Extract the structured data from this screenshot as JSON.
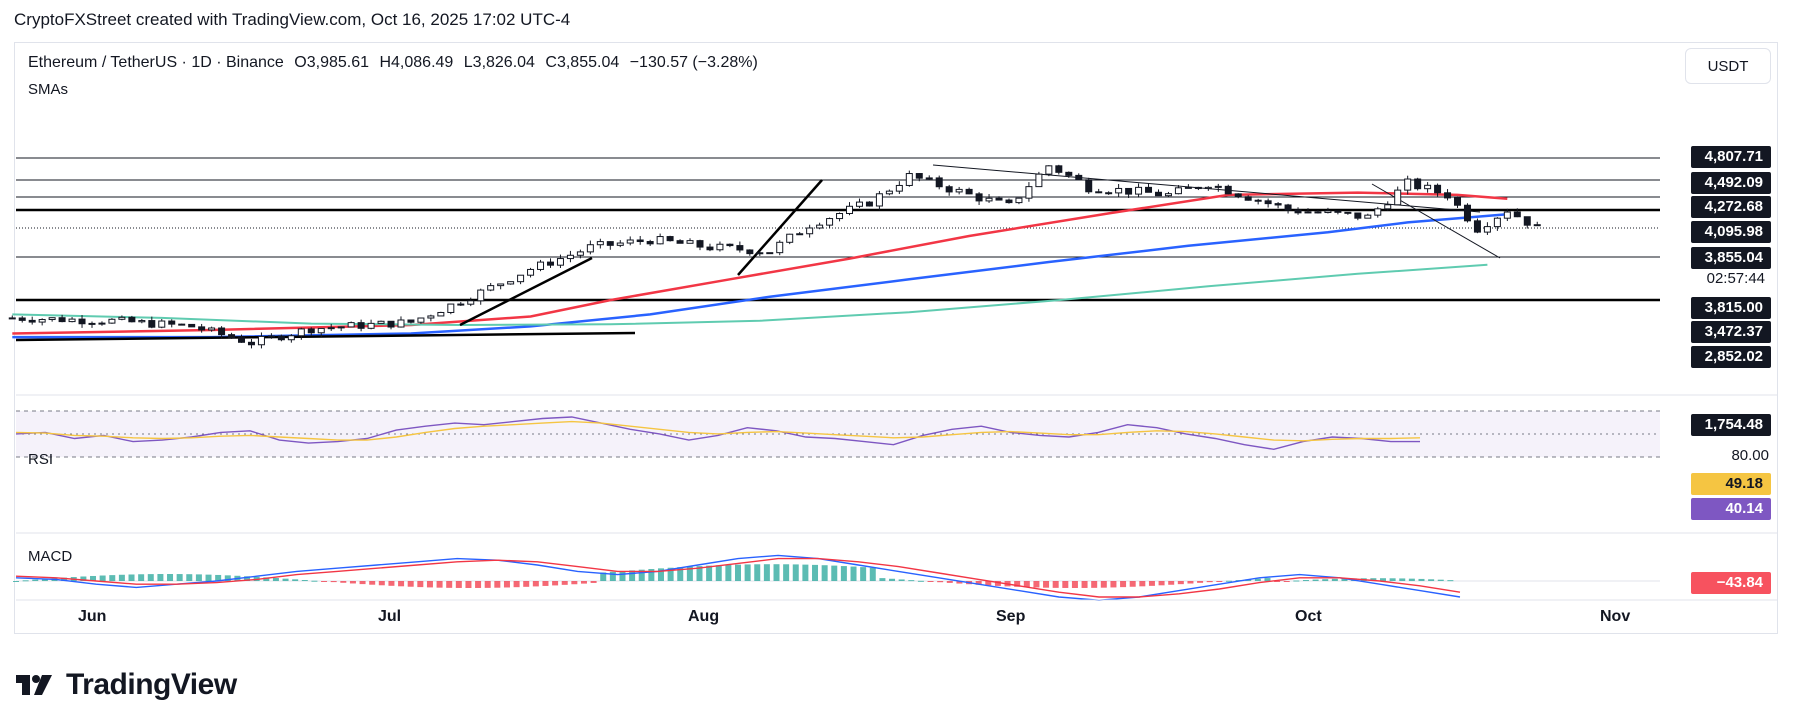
{
  "caption": "CryptoFXStreet created with TradingView.com, Oct 16, 2025 17:02 UTC-4",
  "header": {
    "symbol": "Ethereum / TetherUS · 1D · Binance",
    "open": "O3,985.61",
    "high": "H4,086.49",
    "low": "L3,826.04",
    "close": "C3,855.04",
    "change": "−130.57 (−3.28%)",
    "indicator": "SMAs"
  },
  "currency_button": "USDT",
  "price_axis": {
    "labels": [
      {
        "text": "4,807.71",
        "value": 4807.71,
        "style": "dark"
      },
      {
        "text": "4,492.09",
        "value": 4492.09,
        "style": "dark"
      },
      {
        "text": "4,272.68",
        "value": 4272.68,
        "style": "dark"
      },
      {
        "text": "4,095.98",
        "value": 4095.98,
        "style": "dark"
      },
      {
        "text": "3,855.04",
        "value": 3855.04,
        "style": "dark"
      },
      {
        "text": "02:57:44",
        "value": null,
        "style": "plain"
      },
      {
        "text": "3,815.00",
        "value": 3815.0,
        "style": "dark"
      },
      {
        "text": "3,472.37",
        "value": 3472.37,
        "style": "dark"
      },
      {
        "text": "2,852.02",
        "value": 2852.02,
        "style": "dark"
      },
      {
        "text": "1,754.48",
        "value": 1754.48,
        "style": "dark"
      }
    ]
  },
  "rsi": {
    "label": "RSI",
    "level_80": "80.00",
    "sma_value": "49.18",
    "rsi_value": "40.14",
    "sma_color": "#f5c542",
    "rsi_color": "#7e57c2"
  },
  "macd": {
    "label": "MACD",
    "value": "−43.84",
    "value_color": "#f7525f"
  },
  "time_axis": [
    "Jun",
    "Jul",
    "Aug",
    "Sep",
    "Oct",
    "Nov"
  ],
  "colors": {
    "sma_fast": "#f23645",
    "sma_mid": "#2962ff",
    "sma_slow": "#5fcbb0",
    "candle_border": "#131722"
  },
  "brand": "TradingView",
  "chart_data": {
    "type": "line",
    "title": "Ethereum / TetherUS · 1D · Binance",
    "x": [
      "Jun",
      "Jul",
      "Aug",
      "Sep",
      "Oct",
      "Nov"
    ],
    "series": [
      {
        "values": [
          2650,
          2480,
          3750,
          4300,
          4400,
          3855
        ]
      },
      {
        "values": [
          2450,
          2450,
          2950,
          3700,
          4150,
          4280
        ]
      },
      {
        "values": [
          2300,
          2250,
          2550,
          3300,
          3800,
          4050
        ]
      },
      {
        "values": [
          2600,
          2520,
          2550,
          2700,
          3050,
          3330
        ]
      }
    ],
    "ylabel": "",
    "ylim": [
      1754.48,
      4807.71
    ]
  }
}
